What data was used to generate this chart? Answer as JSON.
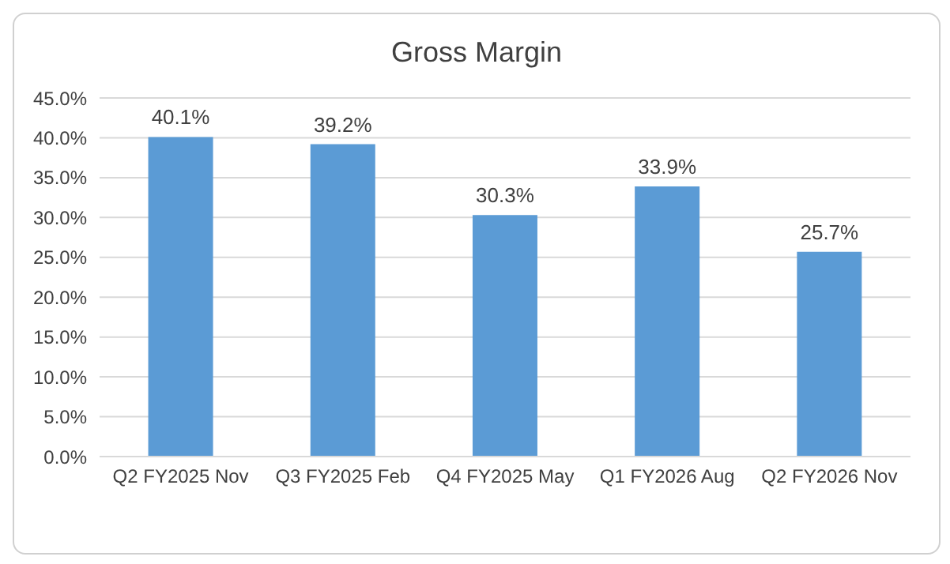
{
  "chart_data": {
    "type": "bar",
    "title": "Gross Margin",
    "categories": [
      "Q2 FY2025 Nov",
      "Q3 FY2025 Feb",
      "Q4 FY2025 May",
      "Q1 FY2026 Aug",
      "Q2 FY2026 Nov"
    ],
    "values": [
      40.1,
      39.2,
      30.3,
      33.9,
      25.7
    ],
    "value_labels": [
      "40.1%",
      "39.2%",
      "30.3%",
      "33.9%",
      "25.7%"
    ],
    "color": "#5b9bd5",
    "ylim": [
      0,
      45
    ],
    "yticks": [
      {
        "value": 0,
        "label": "0.0%"
      },
      {
        "value": 5,
        "label": "5.0%"
      },
      {
        "value": 10,
        "label": "10.0%"
      },
      {
        "value": 15,
        "label": "15.0%"
      },
      {
        "value": 20,
        "label": "20.0%"
      },
      {
        "value": 25,
        "label": "25.0%"
      },
      {
        "value": 30,
        "label": "30.0%"
      },
      {
        "value": 35,
        "label": "35.0%"
      },
      {
        "value": 40,
        "label": "40.0%"
      },
      {
        "value": 45,
        "label": "45.0%"
      }
    ],
    "grid": "y",
    "legend": false
  }
}
